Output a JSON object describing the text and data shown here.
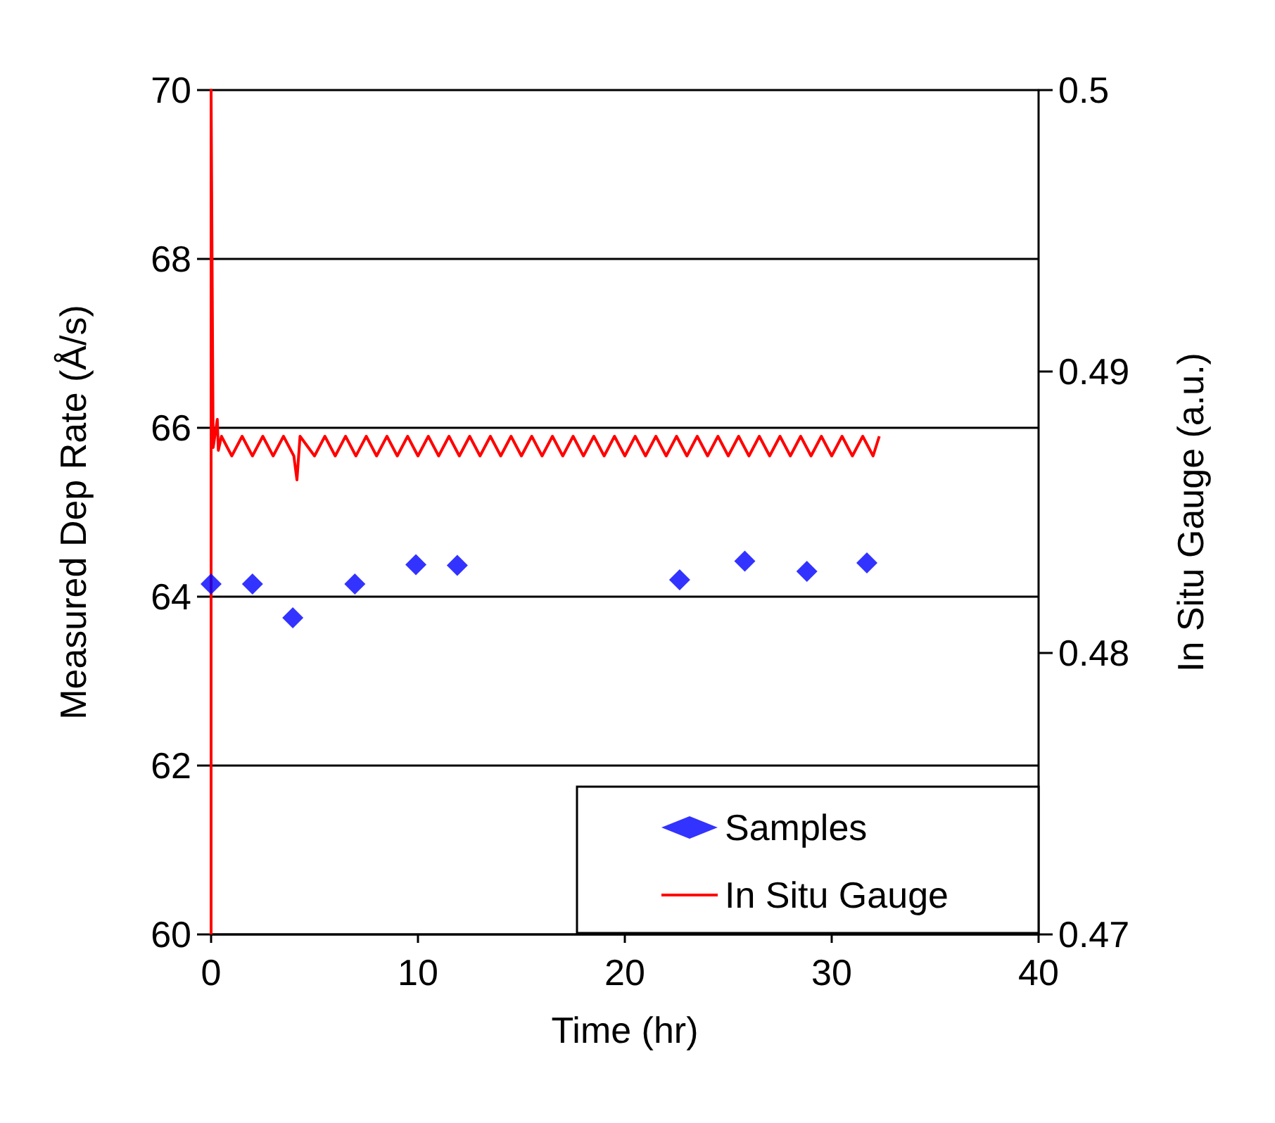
{
  "chart_data": {
    "type": "scatter",
    "xlabel": "Time (hr)",
    "ylabel": "Measured Dep Rate (Å/s)",
    "y2label": "In Situ Gauge (a.u.)",
    "xlim": [
      0,
      40
    ],
    "xticks": [
      0,
      10,
      20,
      30,
      40
    ],
    "ylim": [
      60,
      70
    ],
    "yticks": [
      60,
      62,
      64,
      66,
      68,
      70
    ],
    "y2lim": [
      0.47,
      0.5
    ],
    "y2ticks": [
      0.47,
      0.48,
      0.49,
      0.5
    ],
    "grid": "y",
    "legend": "bottom right",
    "series": [
      {
        "name": "Samples",
        "marker": "diamond",
        "color": "#0000ff",
        "x": [
          0,
          2,
          3.95,
          6.95,
          9.9,
          11.9,
          22.65,
          25.8,
          28.8,
          31.7
        ],
        "values": [
          64.15,
          64.15,
          63.75,
          64.15,
          64.38,
          64.37,
          64.2,
          64.42,
          64.3,
          64.4
        ]
      },
      {
        "name": "In Situ Gauge",
        "type": "line",
        "axis": "y2",
        "marker": "none",
        "line_style": "solid",
        "color": "#ff0000",
        "x": [
          0,
          0,
          0.1,
          0.3,
          0.35,
          0.5,
          1,
          1.5,
          2,
          2.5,
          3,
          3.5,
          4,
          4.15,
          4.3,
          5,
          5.5,
          6,
          6.5,
          7,
          7.5,
          8,
          8.5,
          9,
          9.5,
          10,
          10.5,
          11,
          11.5,
          12,
          12.5,
          13,
          13.5,
          14,
          14.5,
          15,
          15.5,
          16,
          16.5,
          17,
          17.5,
          18,
          18.5,
          19,
          19.5,
          20,
          20.5,
          21,
          21.5,
          22,
          22.5,
          23,
          23.5,
          24,
          24.5,
          25,
          25.5,
          26,
          26.5,
          27,
          27.5,
          28,
          28.5,
          29,
          29.5,
          30,
          30.5,
          31,
          31.5,
          32,
          32.3
        ],
        "values": [
          0.47,
          0.5,
          0.4873,
          0.4883,
          0.4872,
          0.4877,
          0.487,
          0.4877,
          0.487,
          0.4877,
          0.487,
          0.4877,
          0.487,
          0.48615,
          0.4877,
          0.487,
          0.4877,
          0.487,
          0.4877,
          0.487,
          0.4877,
          0.487,
          0.4877,
          0.487,
          0.4877,
          0.487,
          0.4877,
          0.487,
          0.4877,
          0.487,
          0.4877,
          0.487,
          0.4877,
          0.487,
          0.4877,
          0.487,
          0.4877,
          0.487,
          0.4877,
          0.487,
          0.4877,
          0.487,
          0.4877,
          0.487,
          0.4877,
          0.487,
          0.4877,
          0.487,
          0.4877,
          0.487,
          0.4877,
          0.487,
          0.4877,
          0.487,
          0.4877,
          0.487,
          0.4877,
          0.487,
          0.4877,
          0.487,
          0.4877,
          0.487,
          0.4877,
          0.487,
          0.4877,
          0.487,
          0.4877,
          0.487,
          0.4877,
          0.487,
          0.4877
        ]
      }
    ]
  }
}
